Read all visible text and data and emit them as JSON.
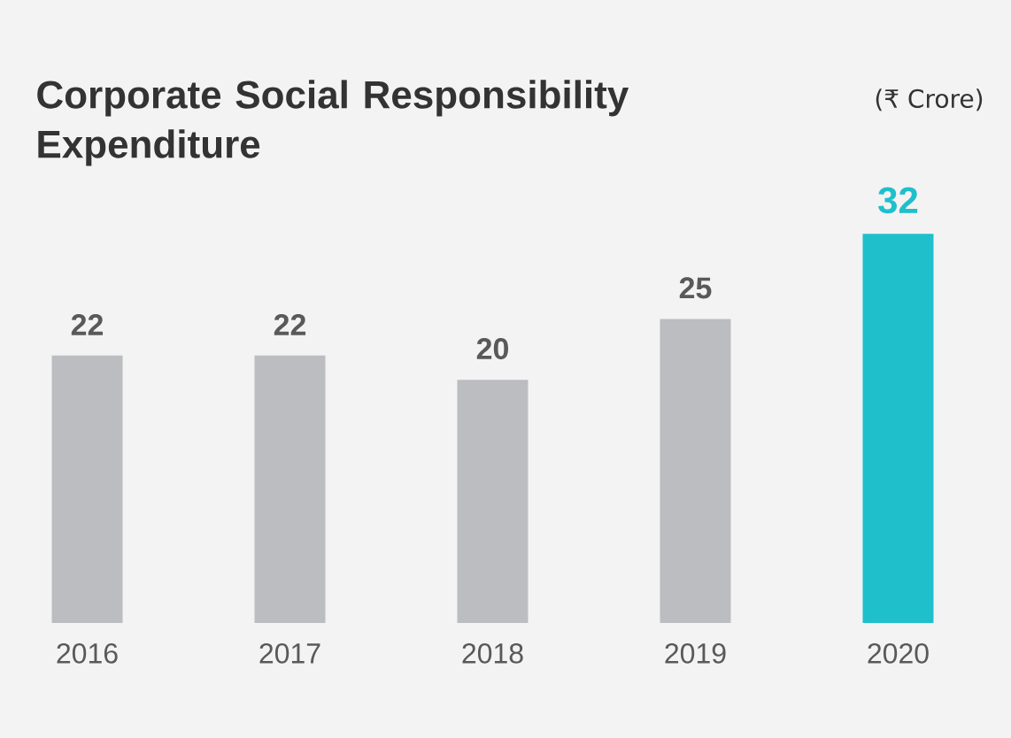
{
  "chart_data": {
    "type": "bar",
    "title": "Corporate Social Responsibility Expenditure",
    "annotations": [
      "(₹ Crore)"
    ],
    "categories": [
      "2016",
      "2017",
      "2018",
      "2019",
      "2020"
    ],
    "values": [
      22,
      22,
      20,
      25,
      32
    ],
    "colors": [
      "#bcbdc0",
      "#bcbdc0",
      "#bcbdc0",
      "#bcbdc0",
      "#1fbfcc"
    ],
    "data_labels": true
  }
}
